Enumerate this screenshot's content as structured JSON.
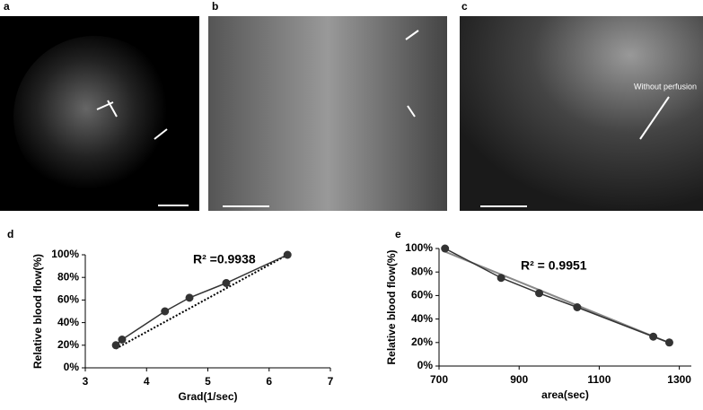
{
  "panel_labels": [
    "a",
    "b",
    "c",
    "d",
    "e"
  ],
  "image_annotation": "Without perfusion",
  "chart_data": [
    {
      "type": "line",
      "annotation": "R² =0.9938",
      "xlabel": "Grad(1/sec)",
      "ylabel": "Relative blood flow(%)",
      "x": [
        3.5,
        3.6,
        4.3,
        4.7,
        5.3,
        6.3
      ],
      "series": [
        {
          "color": "#333333",
          "values": [
            20,
            25,
            50,
            62,
            75,
            100
          ]
        }
      ],
      "trend": {
        "x": [
          3.5,
          6.3
        ],
        "values": [
          17,
          100
        ],
        "style": "dotted"
      },
      "xlim": [
        3,
        7
      ],
      "xticks": [
        3,
        4,
        5,
        6,
        7
      ],
      "ylim": [
        0,
        100
      ],
      "yticks": [
        {
          "value": 0,
          "label": "0%"
        },
        {
          "value": 20,
          "label": "20%"
        },
        {
          "value": 40,
          "label": "40%"
        },
        {
          "value": 60,
          "label": "60%"
        },
        {
          "value": 80,
          "label": "80%"
        },
        {
          "value": 100,
          "label": "100%"
        }
      ]
    },
    {
      "type": "line",
      "annotation": "R² = 0.9951",
      "xlabel": "area(sec)",
      "ylabel": "Relative blood flow(%)",
      "x": [
        715,
        855,
        950,
        1045,
        1235,
        1275
      ],
      "series": [
        {
          "color": "#333333",
          "values": [
            100,
            75,
            62,
            50,
            25,
            20
          ]
        }
      ],
      "trend": {
        "x": [
          710,
          1280
        ],
        "values": [
          98,
          19
        ],
        "style": "solid"
      },
      "xlim": [
        700,
        1330
      ],
      "xticks": [
        700,
        900,
        1100,
        1300
      ],
      "ylim": [
        0,
        100
      ],
      "yticks": [
        {
          "value": 0,
          "label": "0%"
        },
        {
          "value": 20,
          "label": "20%"
        },
        {
          "value": 40,
          "label": "40%"
        },
        {
          "value": 60,
          "label": "60%"
        },
        {
          "value": 80,
          "label": "80%"
        },
        {
          "value": 100,
          "label": "100%"
        }
      ]
    }
  ]
}
